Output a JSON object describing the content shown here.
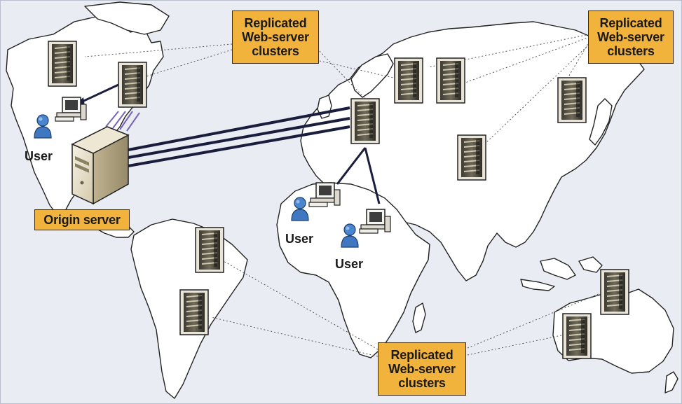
{
  "diagram": {
    "labels": {
      "origin_server": "Origin server",
      "replicated_clusters": "Replicated\nWeb-server\nclusters",
      "user": "User"
    },
    "nodes": {
      "origin_server": "origin-server",
      "clusters": [
        "north-america",
        "europe",
        "asia",
        "south-america",
        "australia"
      ],
      "users": [
        "north-america-user",
        "africa-user",
        "middle-east-user"
      ]
    },
    "colors": {
      "background": "#e9ecf3",
      "land": "#ffffff",
      "label_fill": "#f2b33d",
      "connection": "#1b1d3d",
      "dotted_leader": "#555555",
      "user_icon": "#3f78c0"
    },
    "icons": [
      "server-rack-icon",
      "desktop-computer-icon",
      "user-icon",
      "tower-server-icon"
    ]
  }
}
